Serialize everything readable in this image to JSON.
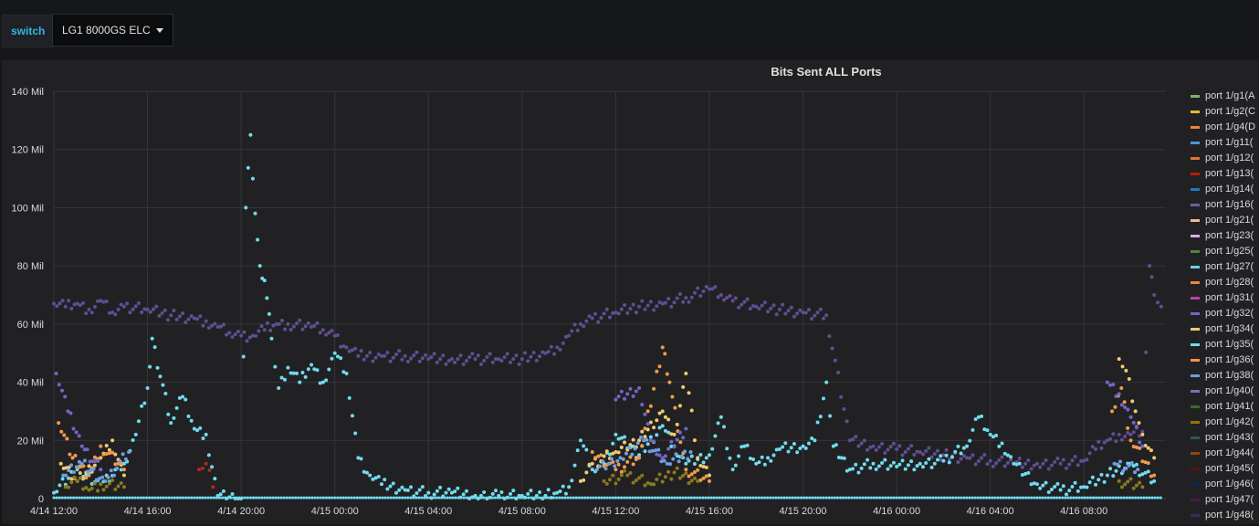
{
  "variable": {
    "label": "switch",
    "value": "LG1 8000GS ELC"
  },
  "panel": {
    "title": "Bits Sent ALL Ports"
  },
  "chart_data": {
    "type": "scatter",
    "title": "Bits Sent ALL Ports",
    "xlabel": "",
    "ylabel": "",
    "x_ticks": [
      "4/14 12:00",
      "4/14 16:00",
      "4/14 20:00",
      "4/15 00:00",
      "4/15 04:00",
      "4/15 08:00",
      "4/15 12:00",
      "4/15 16:00",
      "4/15 20:00",
      "4/16 00:00",
      "4/16 04:00",
      "4/16 08:00"
    ],
    "xlim_hours": [
      0,
      47.5
    ],
    "y_ticks": [
      "0",
      "20 Mil",
      "40 Mil",
      "60 Mil",
      "80 Mil",
      "100 Mil",
      "120 Mil",
      "140 Mil"
    ],
    "ylim": [
      0,
      140000000
    ],
    "grid": true,
    "legend_position": "right",
    "series": [
      {
        "name": "port 1/g16(",
        "color": "#614d93",
        "points": [
          [
            0,
            67
          ],
          [
            0.5,
            66
          ],
          [
            1,
            67
          ],
          [
            1.5,
            65
          ],
          [
            2,
            68
          ],
          [
            2.5,
            64
          ],
          [
            3,
            66
          ],
          [
            4,
            65
          ],
          [
            5,
            63
          ],
          [
            6,
            62
          ],
          [
            6.5,
            61
          ],
          [
            7,
            59
          ],
          [
            7.5,
            57
          ],
          [
            8,
            56
          ],
          [
            8.5,
            56
          ],
          [
            9,
            58
          ],
          [
            9.5,
            60
          ],
          [
            10,
            60
          ],
          [
            11,
            59
          ],
          [
            11.5,
            58
          ],
          [
            12,
            56
          ],
          [
            12.5,
            52
          ],
          [
            13,
            49
          ],
          [
            14,
            49
          ],
          [
            15,
            49
          ],
          [
            16,
            48
          ],
          [
            17,
            48
          ],
          [
            18,
            48
          ],
          [
            19,
            48
          ],
          [
            20,
            48
          ],
          [
            21,
            50
          ],
          [
            21.5,
            52
          ],
          [
            22,
            56
          ],
          [
            22.5,
            60
          ],
          [
            23,
            62
          ],
          [
            24,
            64
          ],
          [
            25,
            66
          ],
          [
            26,
            67
          ],
          [
            27,
            69
          ],
          [
            28,
            72
          ],
          [
            28.5,
            70
          ],
          [
            29,
            68
          ],
          [
            30,
            66
          ],
          [
            31,
            65
          ],
          [
            32,
            64
          ],
          [
            33,
            63
          ],
          [
            34,
            20
          ],
          [
            35,
            18
          ],
          [
            36,
            17
          ],
          [
            37,
            16
          ],
          [
            38,
            15
          ],
          [
            39,
            14
          ],
          [
            40,
            13
          ],
          [
            41,
            12
          ],
          [
            42,
            12
          ],
          [
            43,
            12
          ],
          [
            44,
            13
          ],
          [
            44.5,
            17
          ],
          [
            45,
            20
          ],
          [
            45.5,
            22
          ],
          [
            46,
            22
          ],
          [
            46.5,
            23
          ],
          [
            46.8,
            80
          ],
          [
            47,
            70
          ],
          [
            47.3,
            66
          ]
        ]
      },
      {
        "name": "port 1/g35(",
        "color": "#70dbed",
        "points": [
          [
            0,
            2
          ],
          [
            1,
            10
          ],
          [
            2,
            5
          ],
          [
            3,
            12
          ],
          [
            3.5,
            22
          ],
          [
            4,
            38
          ],
          [
            4.2,
            55
          ],
          [
            5,
            26
          ],
          [
            5.5,
            35
          ],
          [
            6,
            24
          ],
          [
            6.5,
            22
          ],
          [
            7,
            1
          ],
          [
            8,
            0
          ],
          [
            8.2,
            100
          ],
          [
            8.4,
            125
          ],
          [
            8.5,
            110
          ],
          [
            8.6,
            98
          ],
          [
            8.8,
            80
          ],
          [
            9,
            75
          ],
          [
            9.3,
            55
          ],
          [
            9.6,
            38
          ],
          [
            10,
            45
          ],
          [
            10.5,
            40
          ],
          [
            11,
            46
          ],
          [
            11.5,
            40
          ],
          [
            12,
            50
          ],
          [
            12.5,
            43
          ],
          [
            13,
            14
          ],
          [
            13.5,
            8
          ],
          [
            14,
            5
          ],
          [
            15,
            3
          ],
          [
            16,
            2
          ],
          [
            17,
            2
          ],
          [
            18,
            1
          ],
          [
            19,
            1
          ],
          [
            20,
            1
          ],
          [
            21,
            1
          ],
          [
            21.5,
            2
          ],
          [
            22,
            4
          ],
          [
            22.5,
            20
          ],
          [
            23,
            10
          ],
          [
            23.5,
            12
          ],
          [
            24,
            22
          ],
          [
            25,
            15
          ],
          [
            26,
            25
          ],
          [
            26.5,
            18
          ],
          [
            27,
            12
          ],
          [
            28,
            15
          ],
          [
            28.5,
            28
          ],
          [
            29,
            10
          ],
          [
            29.5,
            18
          ],
          [
            30,
            12
          ],
          [
            30.5,
            14
          ],
          [
            31,
            17
          ],
          [
            32,
            18
          ],
          [
            32.5,
            20
          ],
          [
            33,
            40
          ],
          [
            33.3,
            18
          ],
          [
            34,
            10
          ],
          [
            35,
            12
          ],
          [
            36,
            11
          ],
          [
            37,
            12
          ],
          [
            38,
            13
          ],
          [
            39,
            18
          ],
          [
            39.5,
            28
          ],
          [
            40,
            22
          ],
          [
            40.5,
            19
          ],
          [
            41,
            12
          ],
          [
            42,
            5
          ],
          [
            43,
            3
          ],
          [
            44,
            4
          ],
          [
            45,
            8
          ],
          [
            46,
            12
          ],
          [
            47,
            6
          ]
        ]
      },
      {
        "name": "port 1/g34(",
        "color": "#f2c96d",
        "points": [
          [
            0.3,
            12
          ],
          [
            1,
            6
          ],
          [
            2,
            14
          ],
          [
            2.5,
            20
          ],
          [
            3,
            8
          ],
          [
            22.5,
            6
          ],
          [
            23,
            12
          ],
          [
            24,
            16
          ],
          [
            25,
            20
          ],
          [
            26,
            30
          ],
          [
            26.5,
            22
          ],
          [
            27,
            43
          ],
          [
            27.5,
            14
          ],
          [
            28,
            8
          ],
          [
            45.5,
            48
          ],
          [
            45.8,
            44
          ],
          [
            46.2,
            30
          ],
          [
            46.5,
            22
          ],
          [
            47,
            14
          ]
        ]
      },
      {
        "name": "port 1/g4(",
        "color": "#f29a4a",
        "points": [
          [
            0.2,
            26
          ],
          [
            0.8,
            14
          ],
          [
            1.5,
            8
          ],
          [
            2,
            18
          ],
          [
            3,
            10
          ],
          [
            23,
            16
          ],
          [
            24,
            10
          ],
          [
            25,
            14
          ],
          [
            26,
            52
          ],
          [
            26.3,
            40
          ],
          [
            27,
            10
          ],
          [
            28,
            6
          ],
          [
            45.2,
            30
          ],
          [
            45.6,
            38
          ],
          [
            46,
            20
          ],
          [
            47,
            8
          ]
        ]
      },
      {
        "name": "port 1/g32(",
        "color": "#7067c8",
        "points": [
          [
            0.1,
            43
          ],
          [
            0.6,
            30
          ],
          [
            1.2,
            18
          ],
          [
            2,
            10
          ],
          [
            24,
            34
          ],
          [
            25,
            38
          ],
          [
            25.5,
            20
          ],
          [
            26,
            14
          ],
          [
            27,
            24
          ],
          [
            45,
            40
          ],
          [
            45.5,
            36
          ],
          [
            46,
            28
          ],
          [
            46.5,
            18
          ]
        ]
      },
      {
        "name": "port 1/g42(",
        "color": "#8a7a1a",
        "points": [
          [
            0.5,
            4
          ],
          [
            1,
            6
          ],
          [
            1.5,
            3
          ],
          [
            2,
            5
          ],
          [
            3,
            4
          ],
          [
            23.5,
            6
          ],
          [
            24.5,
            8
          ],
          [
            25.5,
            5
          ],
          [
            26.5,
            9
          ],
          [
            27.5,
            6
          ],
          [
            45.5,
            6
          ],
          [
            46.5,
            4
          ]
        ]
      },
      {
        "name": "port 1/g38(",
        "color": "#6f9fde",
        "points": [
          [
            0.4,
            8
          ],
          [
            1.2,
            12
          ],
          [
            2.2,
            6
          ],
          [
            3.2,
            16
          ],
          [
            23.2,
            10
          ],
          [
            24.2,
            14
          ],
          [
            25.2,
            20
          ],
          [
            26.2,
            12
          ],
          [
            27.2,
            16
          ],
          [
            45.3,
            12
          ],
          [
            46.3,
            10
          ]
        ]
      },
      {
        "name": "port 1/g13(",
        "color": "#b02a1f",
        "points": [
          [
            6.2,
            10
          ],
          [
            6.5,
            12
          ],
          [
            6.8,
            4
          ]
        ]
      }
    ],
    "legend": [
      {
        "name": "port 1/g1(A",
        "color": "#7eb26d"
      },
      {
        "name": "port 1/g2(C",
        "color": "#eab839"
      },
      {
        "name": "port 1/g4(D",
        "color": "#ef843c"
      },
      {
        "name": "port 1/g11(",
        "color": "#5195ce"
      },
      {
        "name": "port 1/g12(",
        "color": "#e0752d"
      },
      {
        "name": "port 1/g13(",
        "color": "#bf1b00"
      },
      {
        "name": "port 1/g14(",
        "color": "#1f78c1"
      },
      {
        "name": "port 1/g16(",
        "color": "#705da0"
      },
      {
        "name": "port 1/g21(",
        "color": "#f9ba8f"
      },
      {
        "name": "port 1/g23(",
        "color": "#e5a8e2"
      },
      {
        "name": "port 1/g25(",
        "color": "#508642"
      },
      {
        "name": "port 1/g27(",
        "color": "#6ed0e0"
      },
      {
        "name": "port 1/g28(",
        "color": "#ef843c"
      },
      {
        "name": "port 1/g31(",
        "color": "#ba43a9"
      },
      {
        "name": "port 1/g32(",
        "color": "#7067c8"
      },
      {
        "name": "port 1/g34(",
        "color": "#f2c96d"
      },
      {
        "name": "port 1/g35(",
        "color": "#70dbed"
      },
      {
        "name": "port 1/g36(",
        "color": "#f9934e"
      },
      {
        "name": "port 1/g38(",
        "color": "#6f9fde"
      },
      {
        "name": "port 1/g40(",
        "color": "#806eb7"
      },
      {
        "name": "port 1/g41(",
        "color": "#3f6833"
      },
      {
        "name": "port 1/g42(",
        "color": "#967302"
      },
      {
        "name": "port 1/g43(",
        "color": "#2f575e"
      },
      {
        "name": "port 1/g44(",
        "color": "#99440a"
      },
      {
        "name": "port 1/g45(",
        "color": "#58140c"
      },
      {
        "name": "port 1/g46(",
        "color": "#052b51"
      },
      {
        "name": "port 1/g47(",
        "color": "#511749"
      },
      {
        "name": "port 1/g48(",
        "color": "#3f2b5b"
      }
    ]
  }
}
